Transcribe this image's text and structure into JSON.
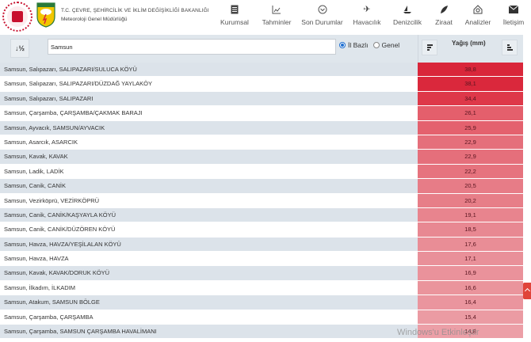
{
  "header": {
    "ministry_line": "T.C. ÇEVRE, ŞEHİRCİLİK VE İKLİM DEĞİŞİKLİĞİ BAKANLIĞI",
    "org_line": "Meteoroloji Genel Müdürlüğü",
    "meteo_logo_text": "METEOROLOJİ"
  },
  "nav": [
    {
      "label": "Kurumsal",
      "icon": "document-icon"
    },
    {
      "label": "Tahminler",
      "icon": "chart-icon"
    },
    {
      "label": "Son Durumlar",
      "icon": "chevron-circle-icon"
    },
    {
      "label": "Havacılık",
      "icon": "airplane-icon"
    },
    {
      "label": "Denizcilik",
      "icon": "sailboat-icon"
    },
    {
      "label": "Ziraat",
      "icon": "leaf-icon"
    },
    {
      "label": "Analizler",
      "icon": "analysis-icon"
    },
    {
      "label": "İletişim",
      "icon": "envelope-icon"
    }
  ],
  "toolbar": {
    "search_value": "Samsun",
    "radio_province": "İl Bazlı",
    "radio_general": "Genel",
    "selected_radio": "province",
    "column_title": "Yağış (mm)"
  },
  "rows": [
    {
      "name": "Samsun, Salıpazarı, SALIPAZARI/SULUCA KÖYÜ",
      "value": "38,8",
      "color": "#d9263a"
    },
    {
      "name": "Samsun, Salıpazarı, SALIPAZARI/DÜZDAĞ YAYLAKÖY",
      "value": "38,1",
      "color": "#da283c"
    },
    {
      "name": "Samsun, Salıpazarı, SALIPAZARI",
      "value": "34,4",
      "color": "#de3849"
    },
    {
      "name": "Samsun, Çarşamba, ÇARŞAMBA/ÇAKMAK BARAJI",
      "value": "26,1",
      "color": "#e45f6c"
    },
    {
      "name": "Samsun, Ayvacık, SAMSUN/AYVACIK",
      "value": "25,9",
      "color": "#e4616e"
    },
    {
      "name": "Samsun, Asarcık, ASARCIK",
      "value": "22,9",
      "color": "#e56f7b"
    },
    {
      "name": "Samsun, Kavak, KAVAK",
      "value": "22,9",
      "color": "#e56f7b"
    },
    {
      "name": "Samsun, Ladik, LADİK",
      "value": "22,2",
      "color": "#e6737e"
    },
    {
      "name": "Samsun, Canik, CANİK",
      "value": "20,5",
      "color": "#e77c87"
    },
    {
      "name": "Samsun, Vezirköprü, VEZİRKÖPRÜ",
      "value": "20,2",
      "color": "#e77e88"
    },
    {
      "name": "Samsun, Canik, CANİK/KAŞYAYLA KÖYÜ",
      "value": "19,1",
      "color": "#e8848e"
    },
    {
      "name": "Samsun, Canik, CANİK/DÜZÖREN KÖYÜ",
      "value": "18,5",
      "color": "#e88892"
    },
    {
      "name": "Samsun, Havza, HAVZA/YEŞİLALAN KÖYÜ",
      "value": "17,6",
      "color": "#e98d96"
    },
    {
      "name": "Samsun, Havza, HAVZA",
      "value": "17,1",
      "color": "#e99099"
    },
    {
      "name": "Samsun, Kavak, KAVAK/DORUK KÖYÜ",
      "value": "16,9",
      "color": "#ea929b"
    },
    {
      "name": "Samsun, İlkadım, İLKADIM",
      "value": "16,6",
      "color": "#ea949c"
    },
    {
      "name": "Samsun, Atakum, SAMSUN BÖLGE",
      "value": "16,4",
      "color": "#ea959e"
    },
    {
      "name": "Samsun, Çarşamba, ÇARŞAMBA",
      "value": "15,4",
      "color": "#eb9ba3"
    },
    {
      "name": "Samsun, Çarşamba, SAMSUN ÇARŞAMBA HAVALİMANI",
      "value": "14,8",
      "color": "#ec9fa7"
    }
  ],
  "watermark": "Windows'u Etkinleştir"
}
